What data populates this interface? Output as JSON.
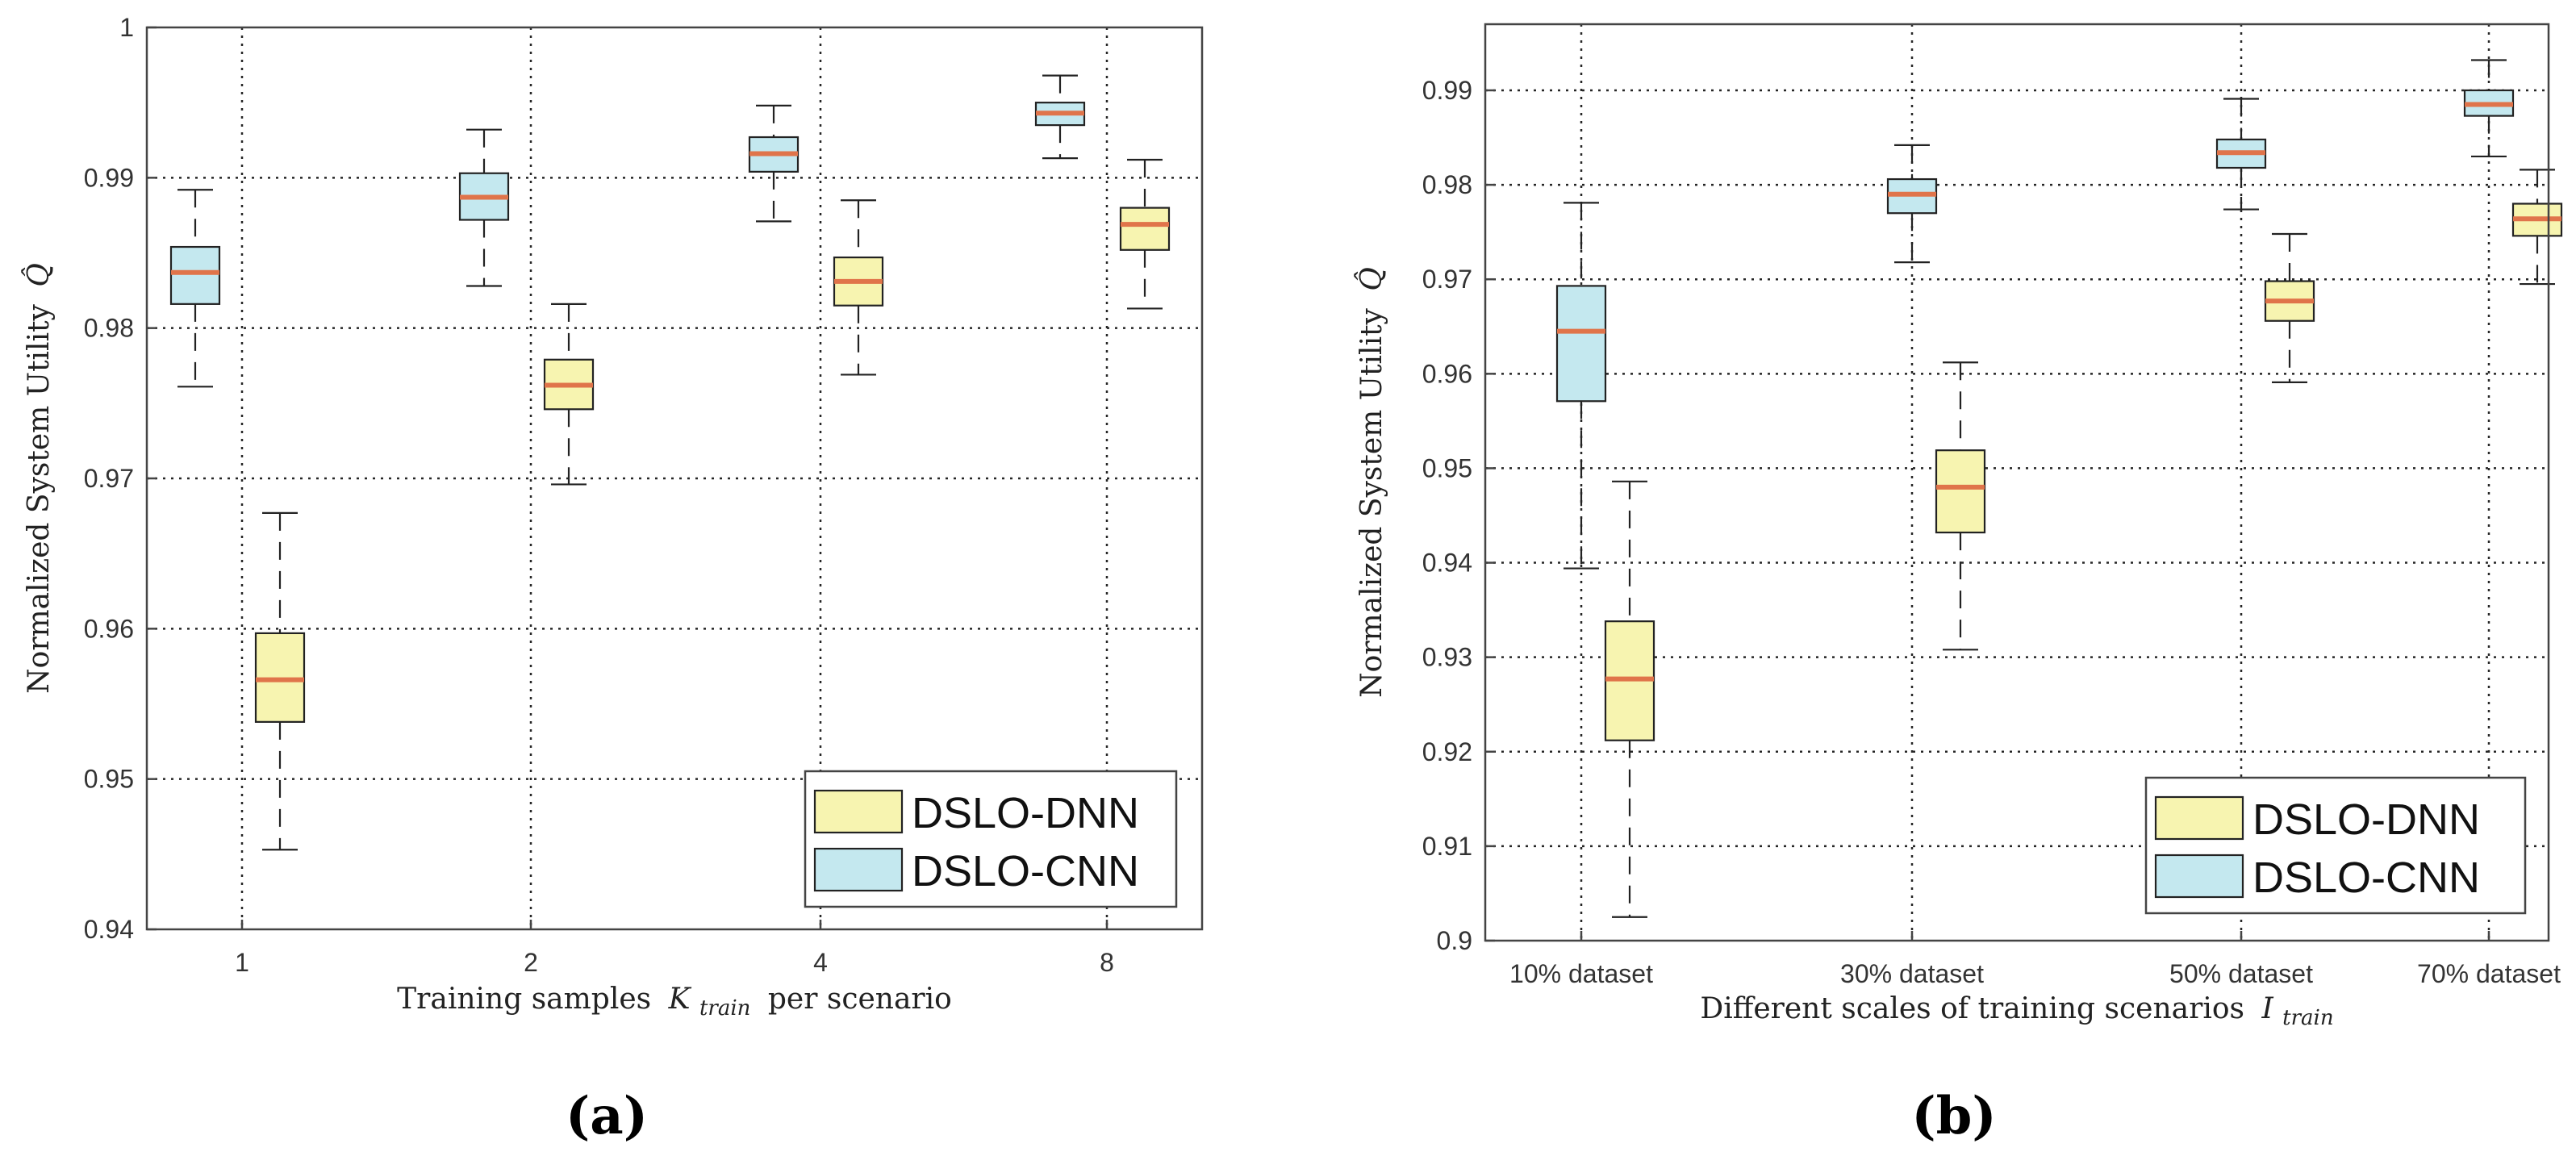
{
  "colors": {
    "dnn_fill": "#f7f4b0",
    "cnn_fill": "#c4e8ef",
    "median": "#e0744a",
    "box_edge": "#222222",
    "axes": "#444444"
  },
  "panel_labels": [
    "(a)",
    "(b)"
  ],
  "chart_data": [
    {
      "type": "box",
      "title": "",
      "xlabel": "Training samples",
      "xlabel_math": "K",
      "xlabel_math_sub": "train",
      "xlabel_suffix": "per scenario",
      "ylabel": "Normalized System Utility",
      "ylabel_math": "Q̂",
      "ylim": [
        0.94,
        1.0
      ],
      "yticks": [
        0.94,
        0.95,
        0.96,
        0.97,
        0.98,
        0.99,
        1.0
      ],
      "ytick_labels": [
        "0.94",
        "0.95",
        "0.96",
        "0.97",
        "0.98",
        "0.99",
        "1"
      ],
      "categories": [
        "1",
        "2",
        "4",
        "8"
      ],
      "grid": true,
      "legend_position": "bottom-right",
      "series": [
        {
          "name": "DSLO-DNN",
          "color": "#f7f4b0",
          "boxes": [
            {
              "min": 0.9453,
              "q1": 0.9538,
              "median": 0.9566,
              "q3": 0.9597,
              "max": 0.9677
            },
            {
              "min": 0.9696,
              "q1": 0.9746,
              "median": 0.9762,
              "q3": 0.9779,
              "max": 0.9816
            },
            {
              "min": 0.9769,
              "q1": 0.9815,
              "median": 0.9831,
              "q3": 0.9847,
              "max": 0.9885
            },
            {
              "min": 0.9813,
              "q1": 0.9852,
              "median": 0.9869,
              "q3": 0.988,
              "max": 0.9912
            }
          ]
        },
        {
          "name": "DSLO-CNN",
          "color": "#c4e8ef",
          "boxes": [
            {
              "min": 0.9761,
              "q1": 0.9816,
              "median": 0.9837,
              "q3": 0.9854,
              "max": 0.9892
            },
            {
              "min": 0.9828,
              "q1": 0.9872,
              "median": 0.9887,
              "q3": 0.9903,
              "max": 0.9932
            },
            {
              "min": 0.9871,
              "q1": 0.9904,
              "median": 0.9916,
              "q3": 0.9927,
              "max": 0.9948
            },
            {
              "min": 0.9913,
              "q1": 0.9935,
              "median": 0.9943,
              "q3": 0.995,
              "max": 0.9968
            }
          ]
        }
      ]
    },
    {
      "type": "box",
      "title": "",
      "xlabel": "Different scales of training scenarios",
      "xlabel_math": "I",
      "xlabel_math_sub": "train",
      "xlabel_suffix": "",
      "ylabel": "Normalized System Utility",
      "ylabel_math": "Q̂",
      "ylim": [
        0.9,
        0.997
      ],
      "yticks": [
        0.9,
        0.91,
        0.92,
        0.93,
        0.94,
        0.95,
        0.96,
        0.97,
        0.98,
        0.99
      ],
      "ytick_labels": [
        "0.9",
        "0.91",
        "0.92",
        "0.93",
        "0.94",
        "0.95",
        "0.96",
        "0.97",
        "0.98",
        "0.99"
      ],
      "categories": [
        "10% dataset",
        "30% dataset",
        "50% dataset",
        "70% dataset"
      ],
      "grid": true,
      "legend_position": "bottom-right",
      "series": [
        {
          "name": "DSLO-CNN",
          "color": "#c4e8ef",
          "boxes": [
            {
              "min": 0.9394,
              "q1": 0.9571,
              "median": 0.9645,
              "q3": 0.9693,
              "max": 0.9781
            },
            {
              "min": 0.9718,
              "q1": 0.977,
              "median": 0.979,
              "q3": 0.9806,
              "max": 0.9842
            },
            {
              "min": 0.9774,
              "q1": 0.9818,
              "median": 0.9834,
              "q3": 0.9848,
              "max": 0.9891
            },
            {
              "min": 0.983,
              "q1": 0.9873,
              "median": 0.9885,
              "q3": 0.99,
              "max": 0.9932
            }
          ]
        },
        {
          "name": "DSLO-DNN",
          "color": "#f7f4b0",
          "boxes": [
            {
              "min": 0.9025,
              "q1": 0.9212,
              "median": 0.9277,
              "q3": 0.9338,
              "max": 0.9486
            },
            {
              "min": 0.9308,
              "q1": 0.9432,
              "median": 0.948,
              "q3": 0.9519,
              "max": 0.9612
            },
            {
              "min": 0.9591,
              "q1": 0.9656,
              "median": 0.9677,
              "q3": 0.9698,
              "max": 0.9748
            },
            {
              "min": 0.9695,
              "q1": 0.9746,
              "median": 0.9764,
              "q3": 0.978,
              "max": 0.9816
            }
          ]
        }
      ]
    }
  ]
}
